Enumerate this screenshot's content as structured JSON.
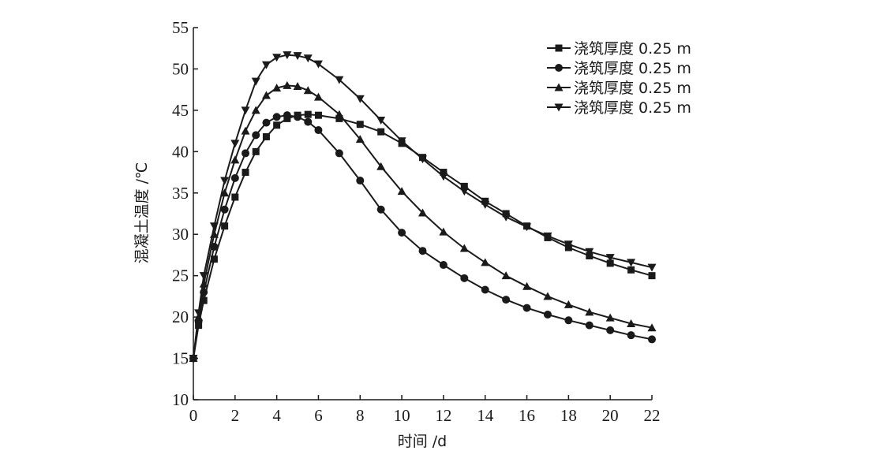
{
  "chart_data": {
    "type": "line",
    "xlabel": "时间 /d",
    "ylabel": "混凝土温度 /℃",
    "xlim": [
      0,
      22
    ],
    "ylim": [
      10,
      55
    ],
    "xticks": [
      0,
      2,
      4,
      6,
      8,
      10,
      12,
      14,
      16,
      18,
      20,
      22
    ],
    "yticks": [
      10,
      15,
      20,
      25,
      30,
      35,
      40,
      45,
      50,
      55
    ],
    "grid": false,
    "legend_position": "top-right",
    "colors": {
      "line": "#1a1a1a",
      "axis": "#1a1a1a"
    },
    "series": [
      {
        "name": "浇筑厚度 0.25 m",
        "marker": "square",
        "x": [
          0,
          0.25,
          0.5,
          1,
          1.5,
          2,
          2.5,
          3,
          3.5,
          4,
          4.5,
          5,
          5.5,
          6,
          7,
          8,
          9,
          10,
          11,
          12,
          13,
          14,
          15,
          16,
          17,
          18,
          19,
          20,
          21,
          22
        ],
        "y": [
          15,
          19,
          22,
          27,
          31,
          34.5,
          37.5,
          40,
          41.8,
          43.2,
          44,
          44.4,
          44.5,
          44.4,
          44,
          43.3,
          42.4,
          41,
          39.3,
          37.5,
          35.8,
          34,
          32.5,
          31,
          29.6,
          28.4,
          27.4,
          26.5,
          25.7,
          25
        ]
      },
      {
        "name": "浇筑厚度 0.25 m",
        "marker": "circle",
        "x": [
          0,
          0.25,
          0.5,
          1,
          1.5,
          2,
          2.5,
          3,
          3.5,
          4,
          4.5,
          5,
          5.5,
          6,
          7,
          8,
          9,
          10,
          11,
          12,
          13,
          14,
          15,
          16,
          17,
          18,
          19,
          20,
          21,
          22
        ],
        "y": [
          15,
          19.5,
          23,
          28.5,
          33,
          36.8,
          39.8,
          42,
          43.5,
          44.2,
          44.4,
          44.2,
          43.6,
          42.6,
          39.8,
          36.5,
          33,
          30.2,
          28,
          26.3,
          24.7,
          23.3,
          22.1,
          21.1,
          20.3,
          19.6,
          19,
          18.4,
          17.8,
          17.3
        ]
      },
      {
        "name": "浇筑厚度 0.25 m",
        "marker": "triangle-up",
        "x": [
          0,
          0.25,
          0.5,
          1,
          1.5,
          2,
          2.5,
          3,
          3.5,
          4,
          4.5,
          5,
          5.5,
          6,
          7,
          8,
          9,
          10,
          11,
          12,
          13,
          14,
          15,
          16,
          17,
          18,
          19,
          20,
          21,
          22
        ],
        "y": [
          15,
          20,
          24,
          30,
          35,
          39,
          42.5,
          45,
          46.8,
          47.7,
          48,
          47.9,
          47.4,
          46.6,
          44.5,
          41.5,
          38.2,
          35.2,
          32.6,
          30.3,
          28.3,
          26.6,
          25,
          23.7,
          22.5,
          21.5,
          20.6,
          19.9,
          19.2,
          18.7
        ]
      },
      {
        "name": "浇筑厚度 0.25 m",
        "marker": "triangle-down",
        "x": [
          0,
          0.25,
          0.5,
          1,
          1.5,
          2,
          2.5,
          3,
          3.5,
          4,
          4.5,
          5,
          5.5,
          6,
          7,
          8,
          9,
          10,
          11,
          12,
          13,
          14,
          15,
          16,
          17,
          18,
          19,
          20,
          21,
          22
        ],
        "y": [
          15,
          20.5,
          25,
          31,
          36.5,
          41,
          45,
          48.5,
          50.5,
          51.4,
          51.7,
          51.6,
          51.3,
          50.6,
          48.7,
          46.4,
          43.8,
          41.3,
          39.1,
          37,
          35.2,
          33.6,
          32.1,
          30.9,
          29.8,
          28.8,
          27.9,
          27.2,
          26.6,
          26
        ]
      }
    ]
  }
}
